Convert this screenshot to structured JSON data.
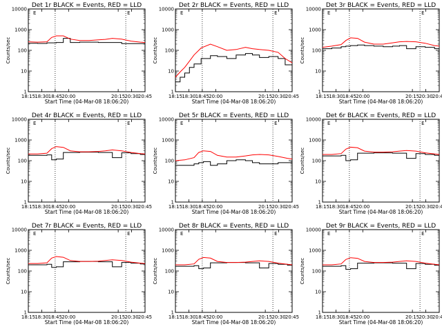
{
  "figure": {
    "xlabel": "Start Time (04-Mar-08 18:06:20)",
    "ylabel": "Counts/sec",
    "x_ticks": [
      "18:15",
      "18:30",
      "18:45",
      "20:00",
      "20:15",
      "20:30",
      "20:45"
    ],
    "y_ticks": [
      "1",
      "10",
      "100",
      "1000",
      "10000"
    ],
    "corner_mark": "E",
    "colors": {
      "events": "#000000",
      "lld": "#ff0000"
    }
  },
  "chart_data": [
    {
      "type": "line",
      "title": "Det 1r BLACK = Events, RED = LLD",
      "x": [
        0,
        0.08,
        0.16,
        0.2,
        0.24,
        0.3,
        0.36,
        0.44,
        0.52,
        0.6,
        0.66,
        0.72,
        0.8,
        0.88,
        0.96,
        1.0
      ],
      "ylim": [
        1,
        10000
      ],
      "log_y": true,
      "series": [
        {
          "values": [
            220,
            215,
            230,
            230,
            240,
            380,
            240,
            250,
            250,
            240,
            240,
            240,
            210,
            210,
            210,
            200
          ]
        },
        {
          "values": [
            260,
            250,
            260,
            420,
            500,
            500,
            350,
            300,
            300,
            320,
            340,
            380,
            350,
            280,
            250,
            240
          ]
        }
      ]
    },
    {
      "type": "line",
      "title": "Det 2r BLACK = Events, RED = LLD",
      "x": [
        0,
        0.04,
        0.08,
        0.12,
        0.16,
        0.22,
        0.3,
        0.36,
        0.44,
        0.52,
        0.6,
        0.66,
        0.72,
        0.8,
        0.88,
        0.94,
        1.0
      ],
      "ylim": [
        1,
        10000
      ],
      "log_y": true,
      "series": [
        {
          "values": [
            3,
            5,
            8,
            15,
            22,
            40,
            55,
            50,
            40,
            60,
            70,
            60,
            45,
            50,
            40,
            20,
            12
          ]
        },
        {
          "values": [
            5,
            9,
            15,
            30,
            60,
            130,
            200,
            150,
            100,
            110,
            140,
            120,
            110,
            100,
            80,
            40,
            25
          ]
        }
      ]
    },
    {
      "type": "line",
      "title": "Det 3r BLACK = Events, RED = LLD",
      "x": [
        0,
        0.08,
        0.16,
        0.2,
        0.24,
        0.3,
        0.36,
        0.44,
        0.52,
        0.6,
        0.66,
        0.72,
        0.8,
        0.88,
        0.96,
        1.0
      ],
      "ylim": [
        1,
        10000
      ],
      "log_y": true,
      "series": [
        {
          "values": [
            120,
            130,
            150,
            160,
            170,
            180,
            170,
            160,
            150,
            160,
            170,
            120,
            150,
            140,
            120,
            110
          ]
        },
        {
          "values": [
            140,
            160,
            190,
            300,
            400,
            380,
            250,
            200,
            200,
            230,
            260,
            270,
            260,
            220,
            170,
            160
          ]
        }
      ]
    },
    {
      "type": "line",
      "title": "Det 4r BLACK = Events, RED = LLD",
      "x": [
        0,
        0.08,
        0.16,
        0.2,
        0.24,
        0.3,
        0.36,
        0.44,
        0.52,
        0.6,
        0.66,
        0.72,
        0.8,
        0.88,
        0.96,
        1.0
      ],
      "ylim": [
        1,
        10000
      ],
      "log_y": true,
      "series": [
        {
          "values": [
            180,
            180,
            190,
            110,
            120,
            250,
            250,
            260,
            260,
            250,
            250,
            140,
            240,
            220,
            200,
            190
          ]
        },
        {
          "values": [
            210,
            210,
            230,
            380,
            480,
            440,
            300,
            270,
            270,
            280,
            300,
            330,
            300,
            250,
            220,
            210
          ]
        }
      ]
    },
    {
      "type": "line",
      "title": "Det 5r BLACK = Events, RED = LLD",
      "x": [
        0,
        0.08,
        0.16,
        0.2,
        0.24,
        0.3,
        0.36,
        0.44,
        0.52,
        0.6,
        0.66,
        0.72,
        0.8,
        0.88,
        0.96,
        1.0
      ],
      "ylim": [
        1,
        10000
      ],
      "log_y": true,
      "series": [
        {
          "values": [
            60,
            60,
            70,
            80,
            90,
            60,
            70,
            100,
            110,
            100,
            80,
            70,
            70,
            80,
            80,
            70
          ]
        },
        {
          "values": [
            100,
            110,
            140,
            250,
            300,
            280,
            180,
            150,
            150,
            170,
            190,
            200,
            190,
            160,
            130,
            120
          ]
        }
      ]
    },
    {
      "type": "line",
      "title": "Det 6r BLACK = Events, RED = LLD",
      "x": [
        0,
        0.08,
        0.16,
        0.2,
        0.24,
        0.3,
        0.36,
        0.44,
        0.52,
        0.6,
        0.66,
        0.72,
        0.8,
        0.88,
        0.96,
        1.0
      ],
      "ylim": [
        1,
        10000
      ],
      "log_y": true,
      "series": [
        {
          "values": [
            170,
            170,
            180,
            100,
            110,
            230,
            230,
            240,
            240,
            230,
            230,
            130,
            220,
            200,
            180,
            170
          ]
        },
        {
          "values": [
            200,
            200,
            220,
            360,
            450,
            420,
            290,
            260,
            260,
            270,
            290,
            310,
            290,
            240,
            210,
            200
          ]
        }
      ]
    },
    {
      "type": "line",
      "title": "Det 7r BLACK = Events, RED = LLD",
      "x": [
        0,
        0.08,
        0.16,
        0.2,
        0.24,
        0.3,
        0.36,
        0.44,
        0.52,
        0.6,
        0.66,
        0.72,
        0.8,
        0.88,
        0.96,
        1.0
      ],
      "ylim": [
        1,
        10000
      ],
      "log_y": true,
      "series": [
        {
          "values": [
            200,
            200,
            210,
            150,
            160,
            280,
            280,
            290,
            290,
            280,
            280,
            160,
            260,
            240,
            220,
            210
          ]
        },
        {
          "values": [
            230,
            230,
            250,
            420,
            500,
            460,
            320,
            290,
            290,
            300,
            320,
            350,
            320,
            270,
            240,
            230
          ]
        }
      ]
    },
    {
      "type": "line",
      "title": "Det 8r BLACK = Events, RED = LLD",
      "x": [
        0,
        0.08,
        0.16,
        0.2,
        0.24,
        0.3,
        0.36,
        0.44,
        0.52,
        0.6,
        0.66,
        0.72,
        0.8,
        0.88,
        0.96,
        1.0
      ],
      "ylim": [
        1,
        10000
      ],
      "log_y": true,
      "series": [
        {
          "values": [
            170,
            170,
            180,
            130,
            140,
            250,
            250,
            260,
            260,
            250,
            250,
            140,
            230,
            210,
            190,
            180
          ]
        },
        {
          "values": [
            200,
            200,
            220,
            370,
            450,
            420,
            290,
            260,
            260,
            270,
            290,
            310,
            290,
            240,
            210,
            200
          ]
        }
      ]
    },
    {
      "type": "line",
      "title": "Det 9r BLACK = Events, RED = LLD",
      "x": [
        0,
        0.08,
        0.16,
        0.2,
        0.24,
        0.3,
        0.36,
        0.44,
        0.52,
        0.6,
        0.66,
        0.72,
        0.8,
        0.88,
        0.96,
        1.0
      ],
      "ylim": [
        1,
        10000
      ],
      "log_y": true,
      "series": [
        {
          "values": [
            170,
            170,
            180,
            120,
            130,
            240,
            240,
            250,
            250,
            240,
            240,
            130,
            230,
            210,
            190,
            180
          ]
        },
        {
          "values": [
            200,
            200,
            220,
            360,
            440,
            410,
            290,
            260,
            260,
            270,
            290,
            310,
            290,
            240,
            210,
            200
          ]
        }
      ]
    }
  ]
}
